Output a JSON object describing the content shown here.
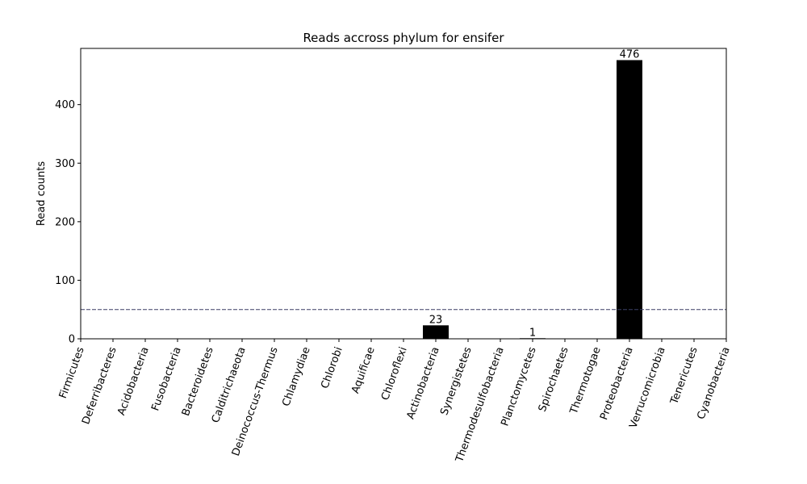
{
  "chart_data": {
    "type": "bar",
    "title": "Reads accross phylum for ensifer",
    "xlabel": "",
    "ylabel": "Read counts",
    "ylim": [
      0,
      496
    ],
    "yticks": [
      0,
      100,
      200,
      300,
      400
    ],
    "threshold": 50,
    "grid": false,
    "legend": "none",
    "bar_color": "#000000",
    "threshold_color": "#3b3f66",
    "categories": [
      "Firmicutes",
      "Deferribacteres",
      "Acidobacteria",
      "Fusobacteria",
      "Bacteroidetes",
      "Calditrichaeota",
      "Deinococcus-Thermus",
      "Chlamydiae",
      "Chlorobi",
      "Aquificae",
      "Chloroflexi",
      "Actinobacteria",
      "Synergistetes",
      "Thermodesulfobacteria",
      "Planctomycetes",
      "Spirochaetes",
      "Thermotogae",
      "Proteobacteria",
      "Verrucomicrobia",
      "Tenericutes",
      "Cyanobacteria"
    ],
    "values": [
      0,
      0,
      0,
      0,
      0,
      0,
      0,
      0,
      0,
      0,
      0,
      23,
      0,
      0,
      1,
      0,
      0,
      476,
      0,
      0,
      0
    ],
    "data_labels": [
      "",
      "",
      "",
      "",
      "",
      "",
      "",
      "",
      "",
      "",
      "",
      "23",
      "",
      "",
      "1",
      "",
      "",
      "476",
      "",
      "",
      ""
    ]
  }
}
